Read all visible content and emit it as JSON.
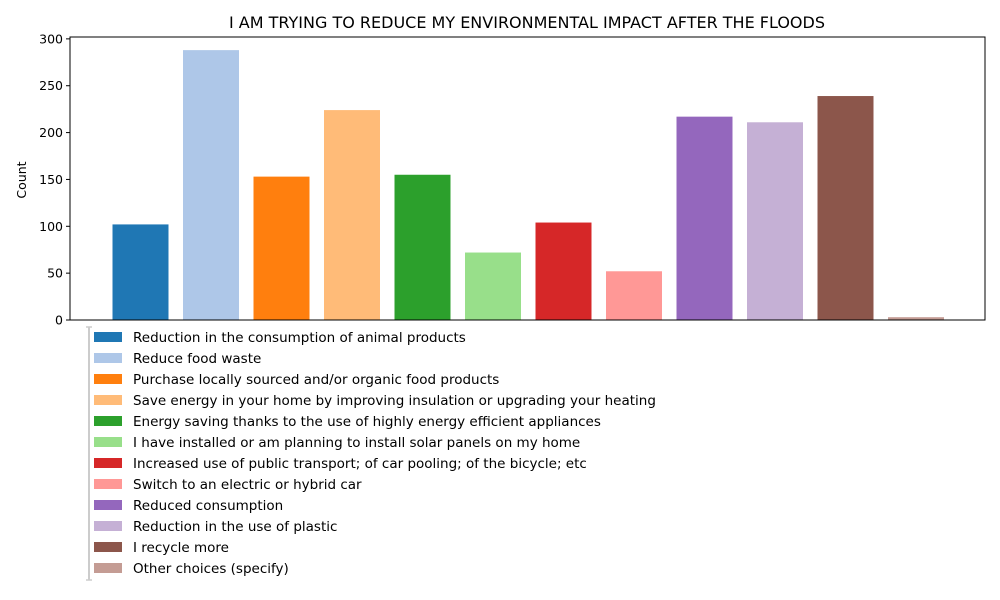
{
  "chart_data": {
    "type": "bar",
    "title": "I AM TRYING TO REDUCE MY ENVIRONMENTAL IMPACT AFTER THE FLOODS",
    "xlabel": "",
    "ylabel": "Count",
    "ylim": [
      0,
      302
    ],
    "yticks": [
      0,
      50,
      100,
      150,
      200,
      250,
      300
    ],
    "grid": false,
    "legend_position": "bottom-left",
    "categories": [
      "Reduction in the consumption of animal products",
      "Reduce food waste",
      "Purchase locally sourced and/or organic food products",
      "Save energy in your home by improving insulation or upgrading your heating",
      "Energy saving thanks to the use of highly energy efficient appliances",
      "I have installed or am planning to install solar panels on my home",
      "Increased use of public transport; of car pooling; of the bicycle; etc",
      "Switch to an electric or hybrid car",
      "Reduced consumption",
      "Reduction in the use of plastic",
      "I recycle more",
      "Other choices (specify)"
    ],
    "values": [
      102,
      288,
      153,
      224,
      155,
      72,
      104,
      52,
      217,
      211,
      239,
      3
    ],
    "colors": [
      "#1f77b4",
      "#aec7e8",
      "#ff7f0e",
      "#ffbb78",
      "#2ca02c",
      "#98df8a",
      "#d62728",
      "#ff9896",
      "#9467bd",
      "#c5b0d5",
      "#8c564b",
      "#c49c94"
    ]
  }
}
